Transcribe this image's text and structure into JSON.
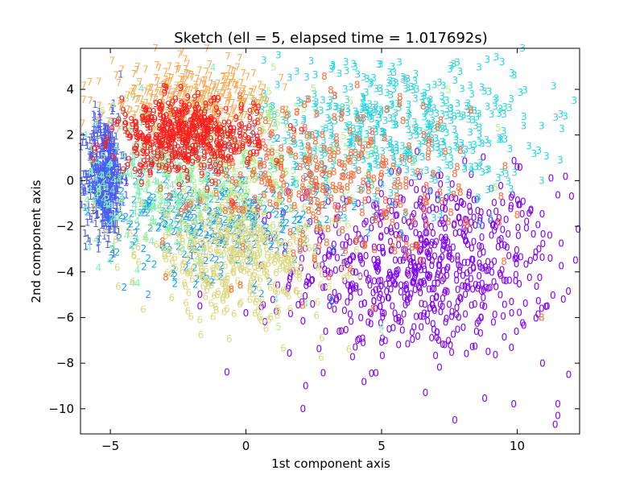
{
  "chart_data": {
    "type": "scatter",
    "title": "Sketch (ell = 5, elapsed time  = 1.017692s)",
    "xlabel": "1st component axis",
    "ylabel": "2nd component axis",
    "xlim": [
      -6.1,
      12.3
    ],
    "ylim": [
      -11.1,
      5.8
    ],
    "xticks": [
      -5,
      0,
      5,
      10
    ],
    "yticks": [
      -10,
      -8,
      -6,
      -4,
      -2,
      0,
      2,
      4
    ],
    "xtick_labels": [
      "−5",
      "0",
      "5",
      "10"
    ],
    "ytick_labels": [
      "−10",
      "−8",
      "−6",
      "−4",
      "−2",
      "0",
      "2",
      "4"
    ],
    "grid": false,
    "legend": "none",
    "marker": "digit glyph (class label)",
    "series": [
      {
        "label": "0",
        "color": "#8000ff",
        "center": [
          6.6,
          -3.8
        ],
        "spread": [
          2.4,
          2.0
        ],
        "count": 700,
        "sample_points": [
          [
            12.0,
            -0.7
          ],
          [
            11.2,
            -2.4
          ],
          [
            10.8,
            -3.0
          ],
          [
            11.7,
            -5.2
          ],
          [
            11.9,
            -8.5
          ],
          [
            11.5,
            -9.8
          ],
          [
            11.5,
            -10.3
          ],
          [
            11.4,
            -10.7
          ],
          [
            7.7,
            -10.5
          ],
          [
            2.1,
            -10.0
          ],
          [
            2.2,
            -9.0
          ],
          [
            -0.7,
            -8.4
          ],
          [
            -1.7,
            -5.0
          ],
          [
            -1.7,
            -5.5
          ],
          [
            0.0,
            -5.8
          ],
          [
            0.7,
            -6.2
          ],
          [
            10.0,
            0.6
          ]
        ]
      },
      {
        "label": "1",
        "color": "#4a5ef5",
        "center": [
          -5.2,
          0.2
        ],
        "spread": [
          0.35,
          1.3
        ],
        "count": 500,
        "sample_points": [
          [
            -5.7,
            1.9
          ],
          [
            -5.5,
            1.0
          ],
          [
            -5.2,
            -1.5
          ],
          [
            -5.0,
            -2.0
          ],
          [
            -4.2,
            0.8
          ],
          [
            -5.9,
            0.3
          ],
          [
            -2.0,
            -3.3
          ]
        ]
      },
      {
        "label": "2",
        "color": "#1aa0e6",
        "center": [
          -1.0,
          -1.5
        ],
        "spread": [
          2.0,
          1.3
        ],
        "count": 350,
        "sample_points": [
          [
            -3.6,
            -5.0
          ],
          [
            -1.8,
            -4.3
          ],
          [
            -3.6,
            -3.4
          ],
          [
            0.3,
            -4.8
          ],
          [
            4.5,
            -2.3
          ],
          [
            3.2,
            -3.0
          ],
          [
            -3.0,
            -1.9
          ],
          [
            -0.4,
            -2.8
          ]
        ]
      },
      {
        "label": "3",
        "color": "#2ad4dc",
        "center": [
          5.5,
          2.3
        ],
        "spread": [
          2.4,
          1.6
        ],
        "count": 500,
        "sample_points": [
          [
            10.2,
            5.8
          ],
          [
            8.9,
            5.3
          ],
          [
            9.8,
            4.7
          ],
          [
            12.1,
            3.5
          ],
          [
            11.6,
            2.9
          ],
          [
            10.9,
            2.4
          ],
          [
            9.4,
            1.8
          ],
          [
            9.6,
            0.3
          ],
          [
            10.9,
            0.0
          ],
          [
            7.4,
            3.5
          ],
          [
            6.3,
            4.0
          ],
          [
            1.2,
            5.5
          ],
          [
            3.0,
            5.9
          ]
        ]
      },
      {
        "label": "4",
        "color": "#7ef0b4",
        "center": [
          -3.2,
          0.0
        ],
        "spread": [
          1.5,
          1.7
        ],
        "count": 250,
        "sample_points": [
          [
            -4.9,
            -2.9
          ],
          [
            -4.0,
            -4.5
          ],
          [
            -4.4,
            -2.4
          ],
          [
            -5.4,
            -0.4
          ],
          [
            2.2,
            -5.4
          ],
          [
            5.0,
            -6.4
          ],
          [
            1.1,
            -5.2
          ],
          [
            -3.8,
            1.5
          ]
        ]
      },
      {
        "label": "5",
        "color": "#b4f08a",
        "center": [
          -0.5,
          0.5
        ],
        "spread": [
          2.2,
          1.6
        ],
        "count": 250,
        "sample_points": [
          [
            -4.4,
            3.6
          ],
          [
            -3.7,
            1.4
          ],
          [
            9.3,
            2.3
          ],
          [
            9.2,
            -0.3
          ],
          [
            5.0,
            -6.7
          ],
          [
            1.2,
            -6.4
          ],
          [
            -3.0,
            -3.2
          ]
        ]
      },
      {
        "label": "6",
        "color": "#dcd882",
        "center": [
          -0.2,
          -3.3
        ],
        "spread": [
          1.8,
          1.3
        ],
        "count": 400,
        "sample_points": [
          [
            -1.7,
            -6.1
          ],
          [
            0.5,
            -6.0
          ],
          [
            0.4,
            -5.2
          ],
          [
            2.8,
            -6.9
          ],
          [
            3.8,
            -7.4
          ],
          [
            1.2,
            -5.7
          ],
          [
            -3.0,
            -3.3
          ],
          [
            -4.8,
            -2.6
          ]
        ]
      },
      {
        "label": "7",
        "color": "#ffaa55",
        "center": [
          -2.0,
          3.4
        ],
        "spread": [
          1.5,
          0.8
        ],
        "count": 400,
        "sample_points": [
          [
            -2.9,
            4.0
          ],
          [
            -1.5,
            4.4
          ],
          [
            -0.1,
            4.7
          ],
          [
            1.3,
            4.5
          ],
          [
            -4.2,
            2.5
          ],
          [
            0.5,
            4.2
          ]
        ]
      },
      {
        "label": "8",
        "color": "#ff6a3a",
        "center": [
          3.0,
          0.2
        ],
        "spread": [
          2.5,
          1.8
        ],
        "count": 300,
        "sample_points": [
          [
            9.4,
            -0.7
          ],
          [
            10.0,
            -1.5
          ],
          [
            10.9,
            -6.0
          ],
          [
            4.1,
            4.2
          ],
          [
            6.6,
            -0.7
          ],
          [
            5.4,
            -2.9
          ],
          [
            6.9,
            0.3
          ],
          [
            2.0,
            -2.7
          ]
        ]
      },
      {
        "label": "9",
        "color": "#ff1e1e",
        "center": [
          -2.2,
          1.9
        ],
        "spread": [
          1.3,
          0.8
        ],
        "count": 450,
        "sample_points": [
          [
            -4.3,
            1.9
          ],
          [
            -4.9,
            1.0
          ],
          [
            -2.5,
            2.5
          ],
          [
            -1.0,
            2.2
          ],
          [
            0.4,
            1.2
          ],
          [
            -3.2,
            0.6
          ],
          [
            -0.5,
            -1.0
          ]
        ]
      }
    ]
  }
}
